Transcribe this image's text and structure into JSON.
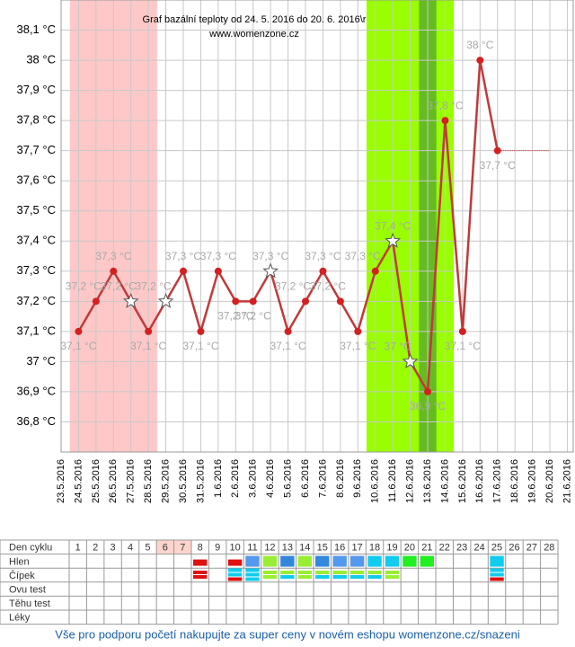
{
  "chart_data": {
    "type": "line",
    "title": "Graf bazální teploty od 24. 5. 2016 do 20. 6. 2016\\r",
    "subtitle": "www.womenzone.cz",
    "categories": [
      "23.5.2016",
      "24.5.2016",
      "25.5.2016",
      "26.5.2016",
      "27.5.2016",
      "28.5.2016",
      "29.5.2016",
      "30.5.2016",
      "31.5.2016",
      "1.6.2016",
      "2.6.2016",
      "3.6.2016",
      "4.6.2016",
      "5.6.2016",
      "6.6.2016",
      "7.6.2016",
      "8.6.2016",
      "9.6.2016",
      "10.6.2016",
      "11.6.2016",
      "12.6.2016",
      "13.6.2016",
      "14.6.2016",
      "15.6.2016",
      "16.6.2016",
      "17.6.2016",
      "18.6.2016",
      "19.6.2016",
      "20.6.2016",
      "21.6.2016"
    ],
    "values": [
      null,
      37.1,
      37.2,
      37.3,
      37.2,
      37.1,
      37.2,
      37.3,
      37.1,
      37.3,
      37.2,
      37.2,
      37.3,
      37.1,
      37.2,
      37.3,
      37.2,
      37.1,
      37.3,
      37.4,
      37.0,
      36.9,
      37.8,
      37.1,
      38.0,
      37.7,
      null,
      null,
      null,
      null
    ],
    "value_labels": [
      null,
      "37,1 °C",
      "37,2 °C",
      "37,3 °C",
      "37,2 °C",
      "37,1 °C",
      "37,2 °C",
      "37,3 °C",
      "37,1 °C",
      "37,3 °C",
      "37,2 °C",
      "37,2 °C",
      "37,3 °C",
      "37,1 °C",
      "37,2 °C",
      "37,3 °C",
      "37,2 °C",
      "37,1 °C",
      "37,3 °C",
      "37,4 °C",
      "37 °C",
      "36,9 °C",
      "37,8 °C",
      "37,1 °C",
      "38 °C",
      "37,7 °C",
      null,
      null,
      null,
      null
    ],
    "markers": [
      null,
      "circle",
      "circle",
      "circle",
      "star",
      "circle",
      "star",
      "circle",
      "circle",
      "circle",
      "circle",
      "circle",
      "star",
      "circle",
      "circle",
      "circle",
      "circle",
      "circle",
      "circle",
      "star",
      "star",
      "circle",
      "circle",
      "circle",
      "circle",
      "circle",
      null,
      null,
      null,
      null
    ],
    "color": "#c03a3a",
    "marker_color": "#d42020",
    "ylim": [
      36.7,
      38.2
    ],
    "yticks": [
      {
        "value": 36.8,
        "label": "36,8 °C"
      },
      {
        "value": 36.9,
        "label": "36,9 °C"
      },
      {
        "value": 37.0,
        "label": "37 °C"
      },
      {
        "value": 37.1,
        "label": "37,1 °C"
      },
      {
        "value": 37.2,
        "label": "37,2 °C"
      },
      {
        "value": 37.3,
        "label": "37,3 °C"
      },
      {
        "value": 37.4,
        "label": "37,4 °C"
      },
      {
        "value": 37.5,
        "label": "37,5 °C"
      },
      {
        "value": 37.6,
        "label": "37,6 °C"
      },
      {
        "value": 37.7,
        "label": "37,7 °C"
      },
      {
        "value": 37.8,
        "label": "37,8 °C"
      },
      {
        "value": 37.9,
        "label": "37,9 °C"
      },
      {
        "value": 38.0,
        "label": "38 °C"
      },
      {
        "value": 38.1,
        "label": "38,1 °C"
      }
    ],
    "grid": true,
    "bands": [
      {
        "start": "24.5.2016",
        "end": "28.5.2016",
        "color": "#ffc8c8"
      },
      {
        "start": "10.6.2016",
        "end": "14.6.2016",
        "color": "#99ff00"
      },
      {
        "start": "13.6.2016",
        "end": "13.6.2016",
        "color": "#66bb22"
      }
    ]
  },
  "table": {
    "row_labels": [
      "Den cyklu",
      "Hlen",
      "Čípek",
      "Ovu test",
      "Těhu test",
      "Léky"
    ],
    "days": [
      1,
      2,
      3,
      4,
      5,
      6,
      7,
      8,
      9,
      10,
      11,
      12,
      13,
      14,
      15,
      16,
      17,
      18,
      19,
      20,
      21,
      22,
      23,
      24,
      25,
      26,
      27,
      28
    ],
    "shaded_days": [
      6,
      7
    ],
    "shade_color": "#ffd4cc",
    "hlen": {
      "8": "#e01010",
      "10": "#e01010",
      "11": "#5599ee",
      "12": "#99ee33",
      "13": "#3388dd",
      "14": "#99ee33",
      "15": "#3388dd",
      "16": "#5599ee",
      "17": "#5599ee",
      "18": "#11ccee",
      "19": "#11ccee",
      "20": "#22ee22",
      "21": "#22ee22",
      "25": "#11ccee"
    },
    "cipek": {
      "8": [
        "#e01010",
        "#e01010"
      ],
      "10": [
        "#11ccee",
        "#11ccee",
        "#e01010"
      ],
      "11": [
        "#11ccee",
        "#11ccee",
        "#11ccee"
      ],
      "12": [
        "#99ee33",
        "#99ee33"
      ],
      "13": [
        "#99ee33",
        "#11ccee"
      ],
      "14": [
        "#99ee33",
        "#99ee33"
      ],
      "15": [
        "#99ee33",
        "#11ccee"
      ],
      "16": [
        "#99ee33",
        "#11ccee"
      ],
      "17": [
        "#99ee33",
        "#11ccee"
      ],
      "18": [
        "#99ee33",
        "#11ccee"
      ],
      "19": [
        "#99ee33",
        "#99ee33"
      ],
      "25": [
        "#11ccee",
        "#11ccee",
        "#e01010"
      ]
    }
  },
  "footer": "Vše pro podporu početí nakupujte za super ceny v novém eshopu womenzone.cz/snazeni"
}
